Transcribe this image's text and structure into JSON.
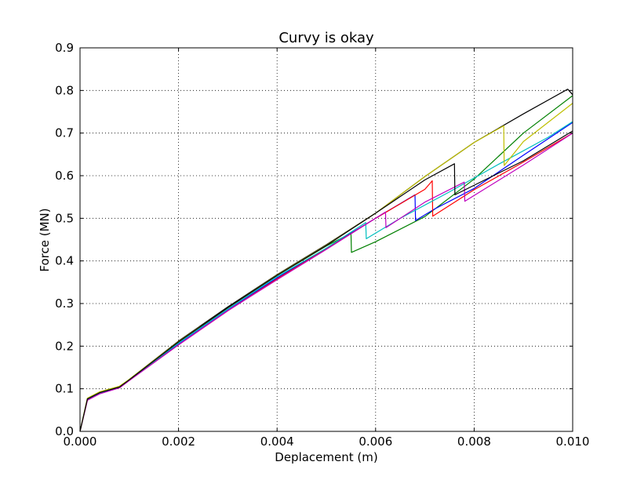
{
  "chart_data": {
    "type": "line",
    "title": "Curvy is okay",
    "xlabel": "Deplacement (m)",
    "ylabel": "Force (MN)",
    "xlim": [
      0,
      0.01
    ],
    "ylim": [
      0,
      0.9
    ],
    "grid": true,
    "x_ticks": [
      "0.000",
      "0.002",
      "0.004",
      "0.006",
      "0.008",
      "0.010"
    ],
    "y_ticks": [
      "0.0",
      "0.1",
      "0.2",
      "0.3",
      "0.4",
      "0.5",
      "0.6",
      "0.7",
      "0.8",
      "0.9"
    ],
    "series": [
      {
        "color": "#000000",
        "x": [
          0,
          0.00015,
          0.0004,
          0.0008,
          0.001,
          0.002,
          0.003,
          0.004,
          0.005,
          0.006,
          0.007,
          0.008,
          0.009,
          0.0099,
          0.01
        ],
        "y": [
          0,
          0.075,
          0.09,
          0.103,
          0.122,
          0.212,
          0.292,
          0.368,
          0.438,
          0.512,
          0.598,
          0.678,
          0.745,
          0.803,
          0.79
        ]
      },
      {
        "color": "#008000",
        "x": [
          0,
          0.00015,
          0.0004,
          0.0008,
          0.001,
          0.002,
          0.003,
          0.004,
          0.005,
          0.0055,
          0.00551,
          0.006,
          0.007,
          0.008,
          0.009,
          0.01
        ],
        "y": [
          0,
          0.077,
          0.092,
          0.105,
          0.122,
          0.21,
          0.29,
          0.366,
          0.435,
          0.465,
          0.42,
          0.445,
          0.504,
          0.592,
          0.7,
          0.788
        ]
      },
      {
        "color": "#0000ff",
        "x": [
          0,
          0.00015,
          0.0004,
          0.0008,
          0.001,
          0.002,
          0.003,
          0.004,
          0.005,
          0.006,
          0.0068,
          0.00681,
          0.0072,
          0.008,
          0.009,
          0.01
        ],
        "y": [
          0,
          0.074,
          0.09,
          0.103,
          0.12,
          0.206,
          0.286,
          0.36,
          0.43,
          0.5,
          0.555,
          0.495,
          0.522,
          0.57,
          0.648,
          0.725
        ]
      },
      {
        "color": "#ff0000",
        "x": [
          0,
          0.00015,
          0.0004,
          0.0008,
          0.001,
          0.002,
          0.003,
          0.004,
          0.005,
          0.006,
          0.007,
          0.00715,
          0.00716,
          0.008,
          0.009,
          0.01
        ],
        "y": [
          0,
          0.073,
          0.089,
          0.102,
          0.12,
          0.203,
          0.283,
          0.358,
          0.428,
          0.5,
          0.568,
          0.588,
          0.505,
          0.567,
          0.632,
          0.7
        ]
      },
      {
        "color": "#00bfbf",
        "x": [
          0,
          0.00015,
          0.0004,
          0.0008,
          0.001,
          0.002,
          0.003,
          0.004,
          0.005,
          0.0058,
          0.00581,
          0.0065,
          0.0075,
          0.0085,
          0.0095,
          0.01
        ],
        "y": [
          0,
          0.075,
          0.09,
          0.103,
          0.121,
          0.207,
          0.287,
          0.363,
          0.43,
          0.49,
          0.452,
          0.5,
          0.562,
          0.627,
          0.69,
          0.727
        ]
      },
      {
        "color": "#bf00bf",
        "x": [
          0,
          0.00015,
          0.0004,
          0.0008,
          0.001,
          0.002,
          0.003,
          0.004,
          0.005,
          0.006,
          0.0062,
          0.00621,
          0.007,
          0.0078,
          0.00781,
          0.009,
          0.01
        ],
        "y": [
          0,
          0.073,
          0.088,
          0.102,
          0.119,
          0.203,
          0.283,
          0.356,
          0.427,
          0.5,
          0.515,
          0.478,
          0.538,
          0.585,
          0.54,
          0.625,
          0.7
        ]
      },
      {
        "color": "#bfbf00",
        "x": [
          0,
          0.00015,
          0.0004,
          0.0008,
          0.001,
          0.002,
          0.003,
          0.004,
          0.005,
          0.006,
          0.007,
          0.008,
          0.0086,
          0.00861,
          0.009,
          0.01
        ],
        "y": [
          0,
          0.078,
          0.093,
          0.106,
          0.122,
          0.211,
          0.29,
          0.367,
          0.437,
          0.512,
          0.598,
          0.678,
          0.717,
          0.624,
          0.68,
          0.77
        ]
      },
      {
        "color": "#000000",
        "x": [
          0,
          0.00015,
          0.0004,
          0.0008,
          0.001,
          0.002,
          0.003,
          0.004,
          0.005,
          0.006,
          0.007,
          0.0076,
          0.00761,
          0.009,
          0.01
        ],
        "y": [
          0,
          0.076,
          0.091,
          0.104,
          0.121,
          0.21,
          0.29,
          0.366,
          0.436,
          0.512,
          0.59,
          0.628,
          0.555,
          0.635,
          0.705
        ]
      }
    ]
  }
}
